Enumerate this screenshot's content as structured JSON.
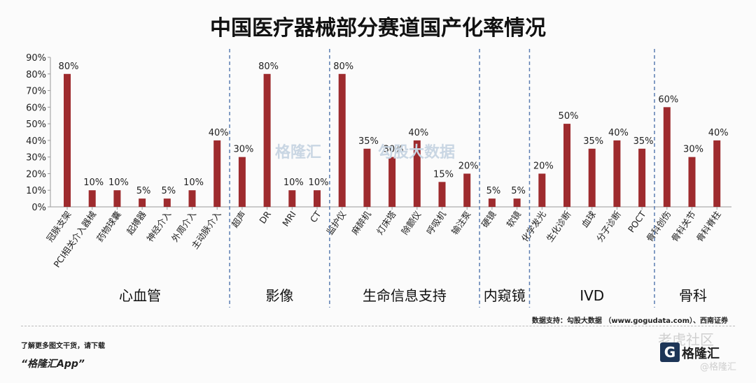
{
  "title": "中国医疗器械部分赛道国产化率情况",
  "source": "数据支持：勾股大数据 （www.gogudata.com）、西南证券",
  "note_more": "了解更多图文干货，请下载",
  "app_name": "“格隆汇App”",
  "watermark_center_left": "格隆汇",
  "watermark_center_right": "勾股大数据",
  "watermark_corner_top": "老虎社区",
  "watermark_corner_logo": "格隆汇",
  "watermark_corner_bottom": "@格隆汇",
  "colors": {
    "bar": "#9e2b2e",
    "axis": "#999999",
    "divider": "#5b7db1"
  },
  "chart_data": {
    "type": "bar",
    "title": "中国医疗器械部分赛道国产化率情况",
    "ylim": [
      0,
      90
    ],
    "yticks": [
      0,
      10,
      20,
      30,
      40,
      50,
      60,
      70,
      80,
      90
    ],
    "ytick_labels": [
      "0%",
      "10%",
      "20%",
      "30%",
      "40%",
      "50%",
      "60%",
      "70%",
      "80%",
      "90%"
    ],
    "grid": false,
    "categories": [
      "冠脉支架",
      "PCI相关介入器械",
      "药物球囊",
      "起搏器",
      "神经介入",
      "外周介入",
      "主动脉介入",
      "超声",
      "DR",
      "MRI",
      "CT",
      "监护仪",
      "麻醉机",
      "灯床塔",
      "除颤仪",
      "呼吸机",
      "输注泵",
      "硬镜",
      "软镜",
      "化学发光",
      "生化诊断",
      "血球",
      "分子诊断",
      "POCT",
      "骨科创伤",
      "骨科关节",
      "骨科脊柱"
    ],
    "values": [
      80,
      10,
      10,
      5,
      5,
      10,
      40,
      30,
      80,
      10,
      10,
      80,
      35,
      30,
      40,
      15,
      20,
      5,
      5,
      20,
      50,
      35,
      40,
      35,
      60,
      30,
      40
    ],
    "value_labels": [
      "80%",
      "10%",
      "10%",
      "5%",
      "5%",
      "10%",
      "40%",
      "30%",
      "80%",
      "10%",
      "10%",
      "80%",
      "35%",
      "30%",
      "40%",
      "15%",
      "20%",
      "5%",
      "5%",
      "20%",
      "50%",
      "35%",
      "40%",
      "35%",
      "60%",
      "30%",
      "40%"
    ],
    "groups": [
      {
        "label": "心血管",
        "count": 7
      },
      {
        "label": "影像",
        "count": 4
      },
      {
        "label": "生命信息支持",
        "count": 6
      },
      {
        "label": "内窥镜",
        "count": 2
      },
      {
        "label": "IVD",
        "count": 5
      },
      {
        "label": "骨科",
        "count": 3
      }
    ]
  }
}
